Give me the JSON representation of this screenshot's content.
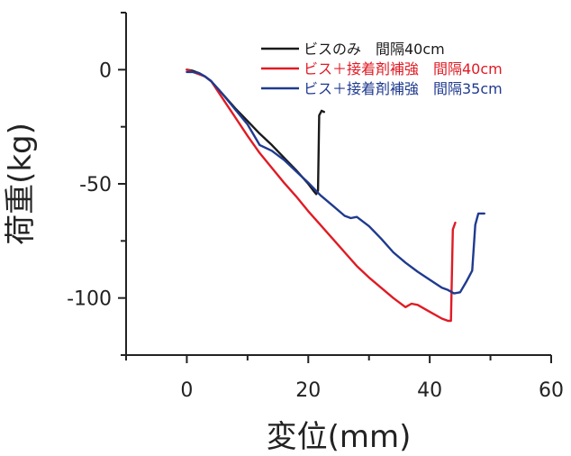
{
  "chart_data": {
    "type": "line",
    "title": "",
    "xlabel": "変位(mm)",
    "ylabel": "荷重(kg)",
    "xlim": [
      -10,
      60
    ],
    "ylim": [
      -125,
      25
    ],
    "x_ticks": [
      0,
      20,
      40,
      60
    ],
    "x_tick_labels": [
      "0",
      "20",
      "40",
      "60"
    ],
    "y_ticks": [
      0,
      -50,
      -100
    ],
    "y_tick_labels": [
      "0",
      "-50",
      "-100"
    ],
    "grid": false,
    "legend_position": "top-right",
    "series": [
      {
        "name": "ビスのみ　間隔40cm",
        "color": "#1a1a1a",
        "x": [
          0,
          1,
          2,
          3,
          4,
          6,
          8,
          10,
          12,
          14,
          16,
          18,
          20,
          21,
          21.3,
          21.6,
          21.8,
          22.2,
          22.6
        ],
        "y": [
          0,
          -0.5,
          -1.5,
          -3,
          -5,
          -11,
          -17,
          -22.5,
          -28,
          -33,
          -38.5,
          -44,
          -50,
          -53.5,
          -54.5,
          -53,
          -20,
          -18,
          -18.5
        ]
      },
      {
        "name": "ビス＋接着剤補強　間隔40cm",
        "color": "#e01b24",
        "x": [
          0,
          1,
          2,
          3,
          4,
          6,
          8,
          10,
          12,
          14,
          16,
          18,
          20,
          22,
          24,
          26,
          28,
          30,
          32,
          34,
          36,
          37,
          38,
          40,
          42,
          43,
          43.5,
          43.8,
          44.2
        ],
        "y": [
          0,
          -1,
          -2,
          -3,
          -5,
          -13,
          -21,
          -29,
          -36.5,
          -43,
          -49.5,
          -55.5,
          -62,
          -68,
          -74,
          -80,
          -86,
          -91,
          -95.5,
          -100,
          -104,
          -102.5,
          -103,
          -106,
          -109,
          -110,
          -110,
          -70,
          -67
        ]
      },
      {
        "name": "ビス＋接着剤補強　間隔35cm",
        "color": "#1f3a8f",
        "x": [
          0,
          1,
          2,
          3,
          4,
          6,
          8,
          10,
          12,
          14,
          16,
          18,
          20,
          22,
          24,
          26,
          27,
          28,
          30,
          32,
          34,
          36,
          38,
          40,
          42,
          43,
          44,
          45,
          46,
          47,
          47.5,
          48,
          49
        ],
        "y": [
          -1,
          -1,
          -1.5,
          -3,
          -5,
          -11,
          -17.5,
          -24,
          -33,
          -35.5,
          -39.5,
          -44.5,
          -49.5,
          -55,
          -59.5,
          -64,
          -65,
          -64.5,
          -68.5,
          -74,
          -80,
          -84.5,
          -88.5,
          -92,
          -95.5,
          -96.5,
          -98,
          -97.5,
          -93,
          -88,
          -68,
          -63,
          -63
        ]
      }
    ]
  },
  "legend": {
    "entries": [
      {
        "label": "ビスのみ　間隔40cm",
        "line_color": "#1a1a1a",
        "text_color": "#1a1a1a"
      },
      {
        "label": "ビス＋接着剤補強　間隔40cm",
        "line_color": "#e01b24",
        "text_color": "#e01b24"
      },
      {
        "label": "ビス＋接着剤補強　間隔35cm",
        "line_color": "#1f3a8f",
        "text_color": "#1f3a8f"
      }
    ]
  }
}
